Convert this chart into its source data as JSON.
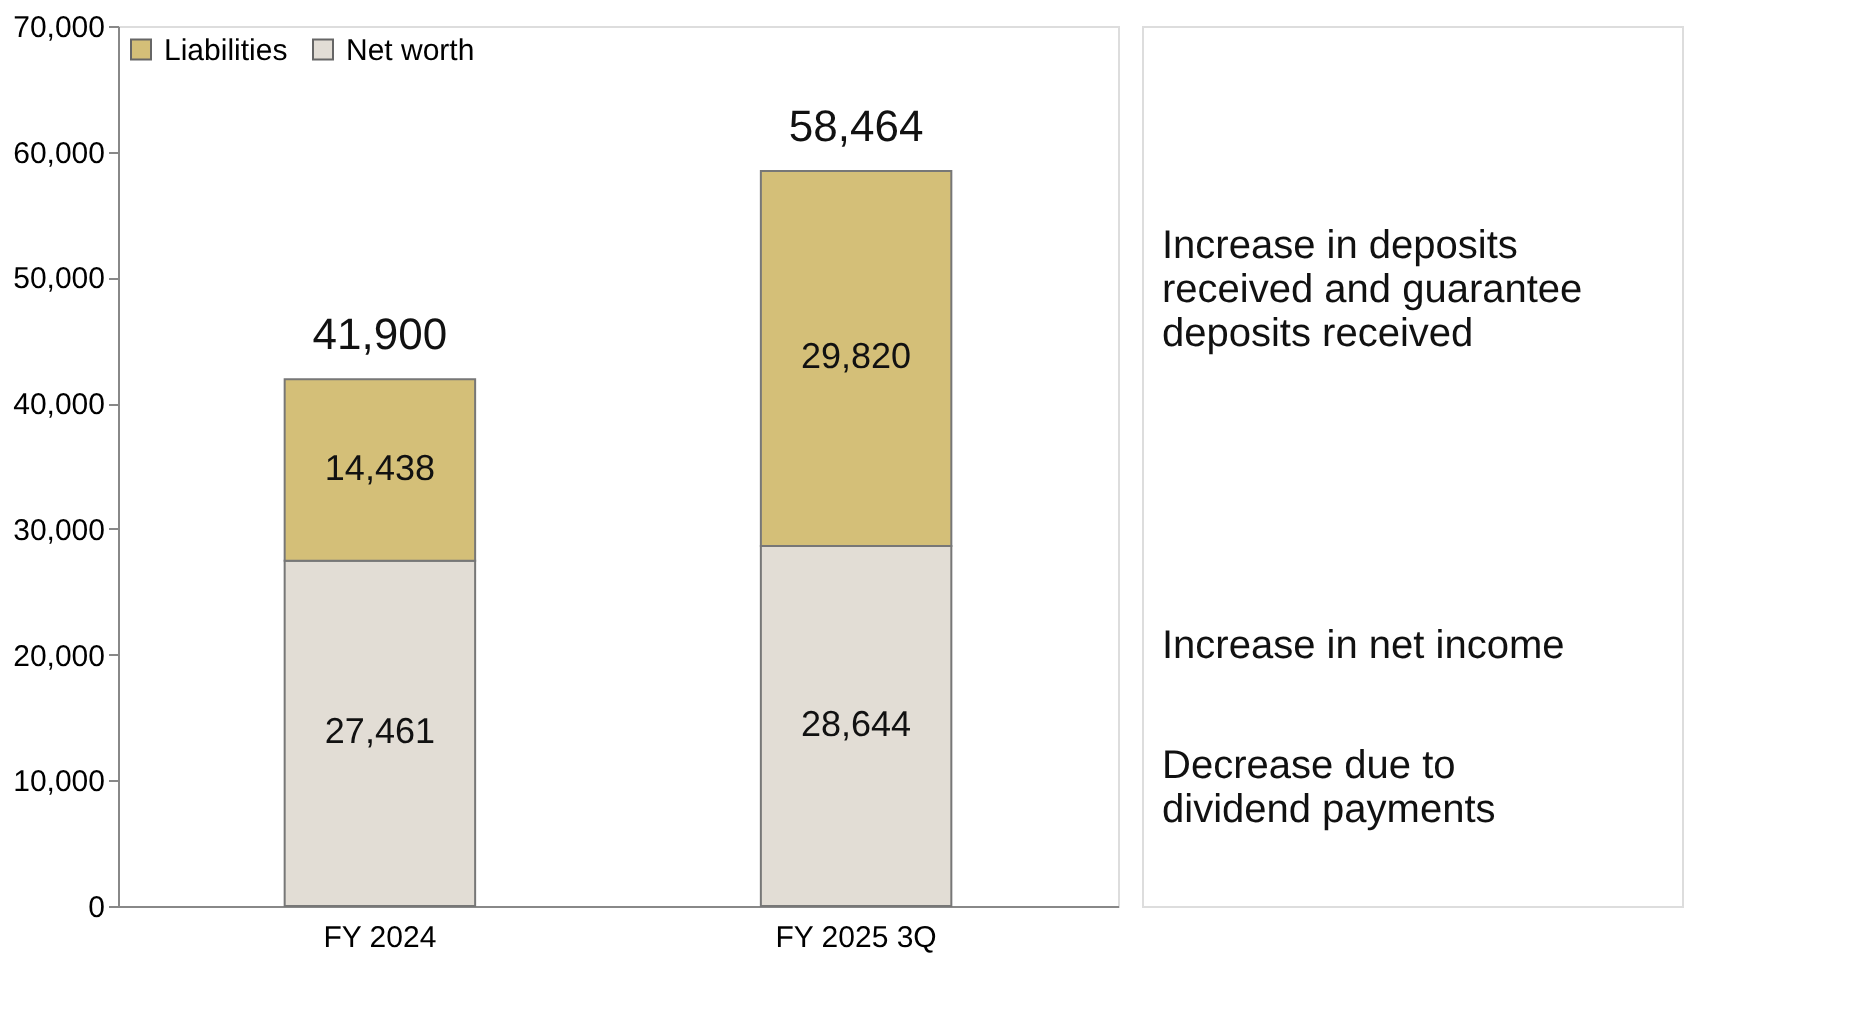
{
  "chart_data": {
    "type": "bar",
    "stacked": true,
    "categories": [
      "FY 2024",
      "FY 2025 3Q"
    ],
    "series": [
      {
        "name": "Net worth",
        "color": "#e2ddd5",
        "values": [
          27461,
          28644
        ],
        "value_labels": [
          "27,461",
          "28,644"
        ]
      },
      {
        "name": "Liabilities",
        "color": "#d4bf78",
        "values": [
          14438,
          29820
        ],
        "value_labels": [
          "14,438",
          "29,820"
        ]
      }
    ],
    "totals": [
      "41,900",
      "58,464"
    ],
    "ylim": [
      0,
      70000
    ],
    "yticks": [
      {
        "value": 0,
        "label": "0"
      },
      {
        "value": 10000,
        "label": "10,000"
      },
      {
        "value": 20000,
        "label": "20,000"
      },
      {
        "value": 30000,
        "label": "30,000"
      },
      {
        "value": 40000,
        "label": "40,000"
      },
      {
        "value": 50000,
        "label": "50,000"
      },
      {
        "value": 60000,
        "label": "60,000"
      },
      {
        "value": 70000,
        "label": "70,000"
      }
    ],
    "grid": false,
    "legend": "top left",
    "annotations": [
      "Increase in deposits\nreceived and guarantee\ndeposits received",
      "Increase in net income",
      "Decrease due to\ndividend payments"
    ]
  }
}
